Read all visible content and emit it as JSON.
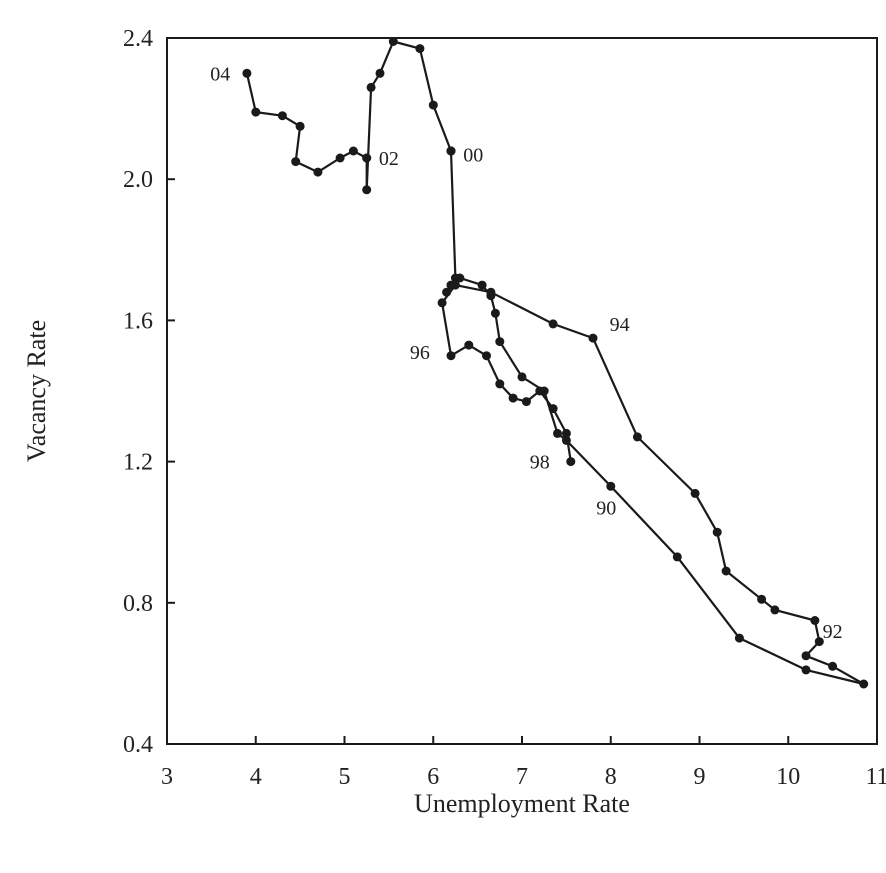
{
  "colors": {
    "line": "#1a1a1a",
    "text": "#222222",
    "background": "#ffffff"
  },
  "chart_data": {
    "type": "line",
    "title": "",
    "xlabel": "Unemployment Rate",
    "ylabel": "Vacancy Rate",
    "xlim": [
      3,
      11
    ],
    "ylim": [
      0.4,
      2.4
    ],
    "xticks": [
      "3",
      "4",
      "5",
      "6",
      "7",
      "8",
      "9",
      "10",
      "11"
    ],
    "yticks": [
      "0.4",
      "0.8",
      "1.2",
      "1.6",
      "2.0",
      "2.4"
    ],
    "grid": false,
    "legend": "none",
    "series": [
      {
        "x": [
          7.55,
          7.5,
          7.35,
          7.2,
          7.05,
          6.9,
          6.75,
          6.6,
          6.4,
          6.2,
          6.1,
          6.25,
          6.65,
          7.35,
          7.8,
          8.3,
          8.95,
          9.2,
          9.3,
          9.7,
          9.85,
          10.3,
          10.35,
          10.2,
          10.5,
          10.85,
          10.2,
          9.45,
          8.75,
          8.0,
          7.5,
          7.4,
          7.25,
          7.0,
          6.75,
          6.7,
          6.65,
          6.55,
          6.3,
          6.2,
          6.15,
          6.25,
          6.2,
          6.2,
          6.2,
          6.0,
          5.85,
          5.55,
          5.4,
          5.3,
          5.25,
          5.25,
          5.25,
          5.1,
          4.95,
          4.7,
          4.45,
          4.5,
          4.3,
          4.0,
          3.9
        ],
        "y": [
          1.2,
          1.28,
          1.35,
          1.4,
          1.37,
          1.38,
          1.42,
          1.5,
          1.53,
          1.5,
          1.65,
          1.7,
          1.68,
          1.59,
          1.55,
          1.27,
          1.11,
          1.0,
          0.89,
          0.81,
          0.78,
          0.75,
          0.69,
          0.65,
          0.62,
          0.57,
          0.61,
          0.7,
          0.93,
          1.13,
          1.26,
          1.28,
          1.4,
          1.44,
          1.54,
          1.62,
          1.67,
          1.7,
          1.72,
          1.7,
          1.68,
          1.72,
          2.08,
          2.08,
          2.08,
          2.21,
          2.37,
          2.39,
          2.3,
          2.26,
          1.97,
          2.06,
          2.06,
          2.08,
          2.06,
          2.02,
          2.05,
          2.15,
          2.18,
          2.19,
          2.3
        ]
      }
    ],
    "annotations": [
      {
        "text": "90",
        "x": 7.95,
        "y": 1.07
      },
      {
        "text": "92",
        "x": 10.5,
        "y": 0.72
      },
      {
        "text": "94",
        "x": 8.1,
        "y": 1.59
      },
      {
        "text": "96",
        "x": 5.85,
        "y": 1.51
      },
      {
        "text": "98",
        "x": 7.2,
        "y": 1.2
      },
      {
        "text": "00",
        "x": 6.45,
        "y": 2.07
      },
      {
        "text": "02",
        "x": 5.5,
        "y": 2.06
      },
      {
        "text": "04",
        "x": 3.6,
        "y": 2.3
      }
    ]
  }
}
